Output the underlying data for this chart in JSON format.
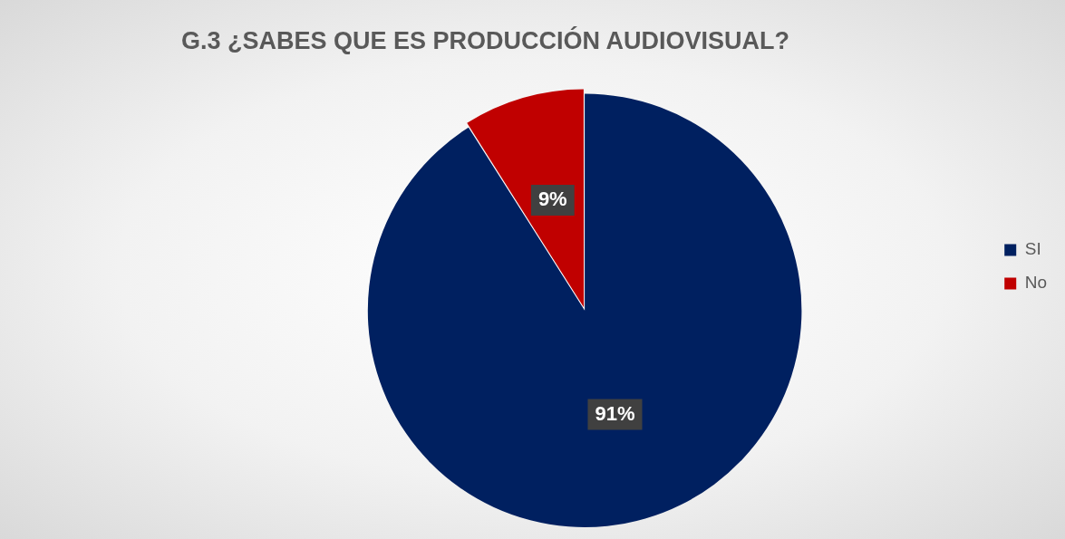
{
  "chart_data": {
    "type": "pie",
    "title": "G.3 ¿SABES QUE ES PRODUCCIÓN AUDIOVISUAL?",
    "categories": [
      "SI",
      "No"
    ],
    "values": [
      91,
      9
    ],
    "colors": [
      "#002060",
      "#c00000"
    ],
    "value_labels": [
      "91%",
      "9%"
    ],
    "legend": "right"
  }
}
